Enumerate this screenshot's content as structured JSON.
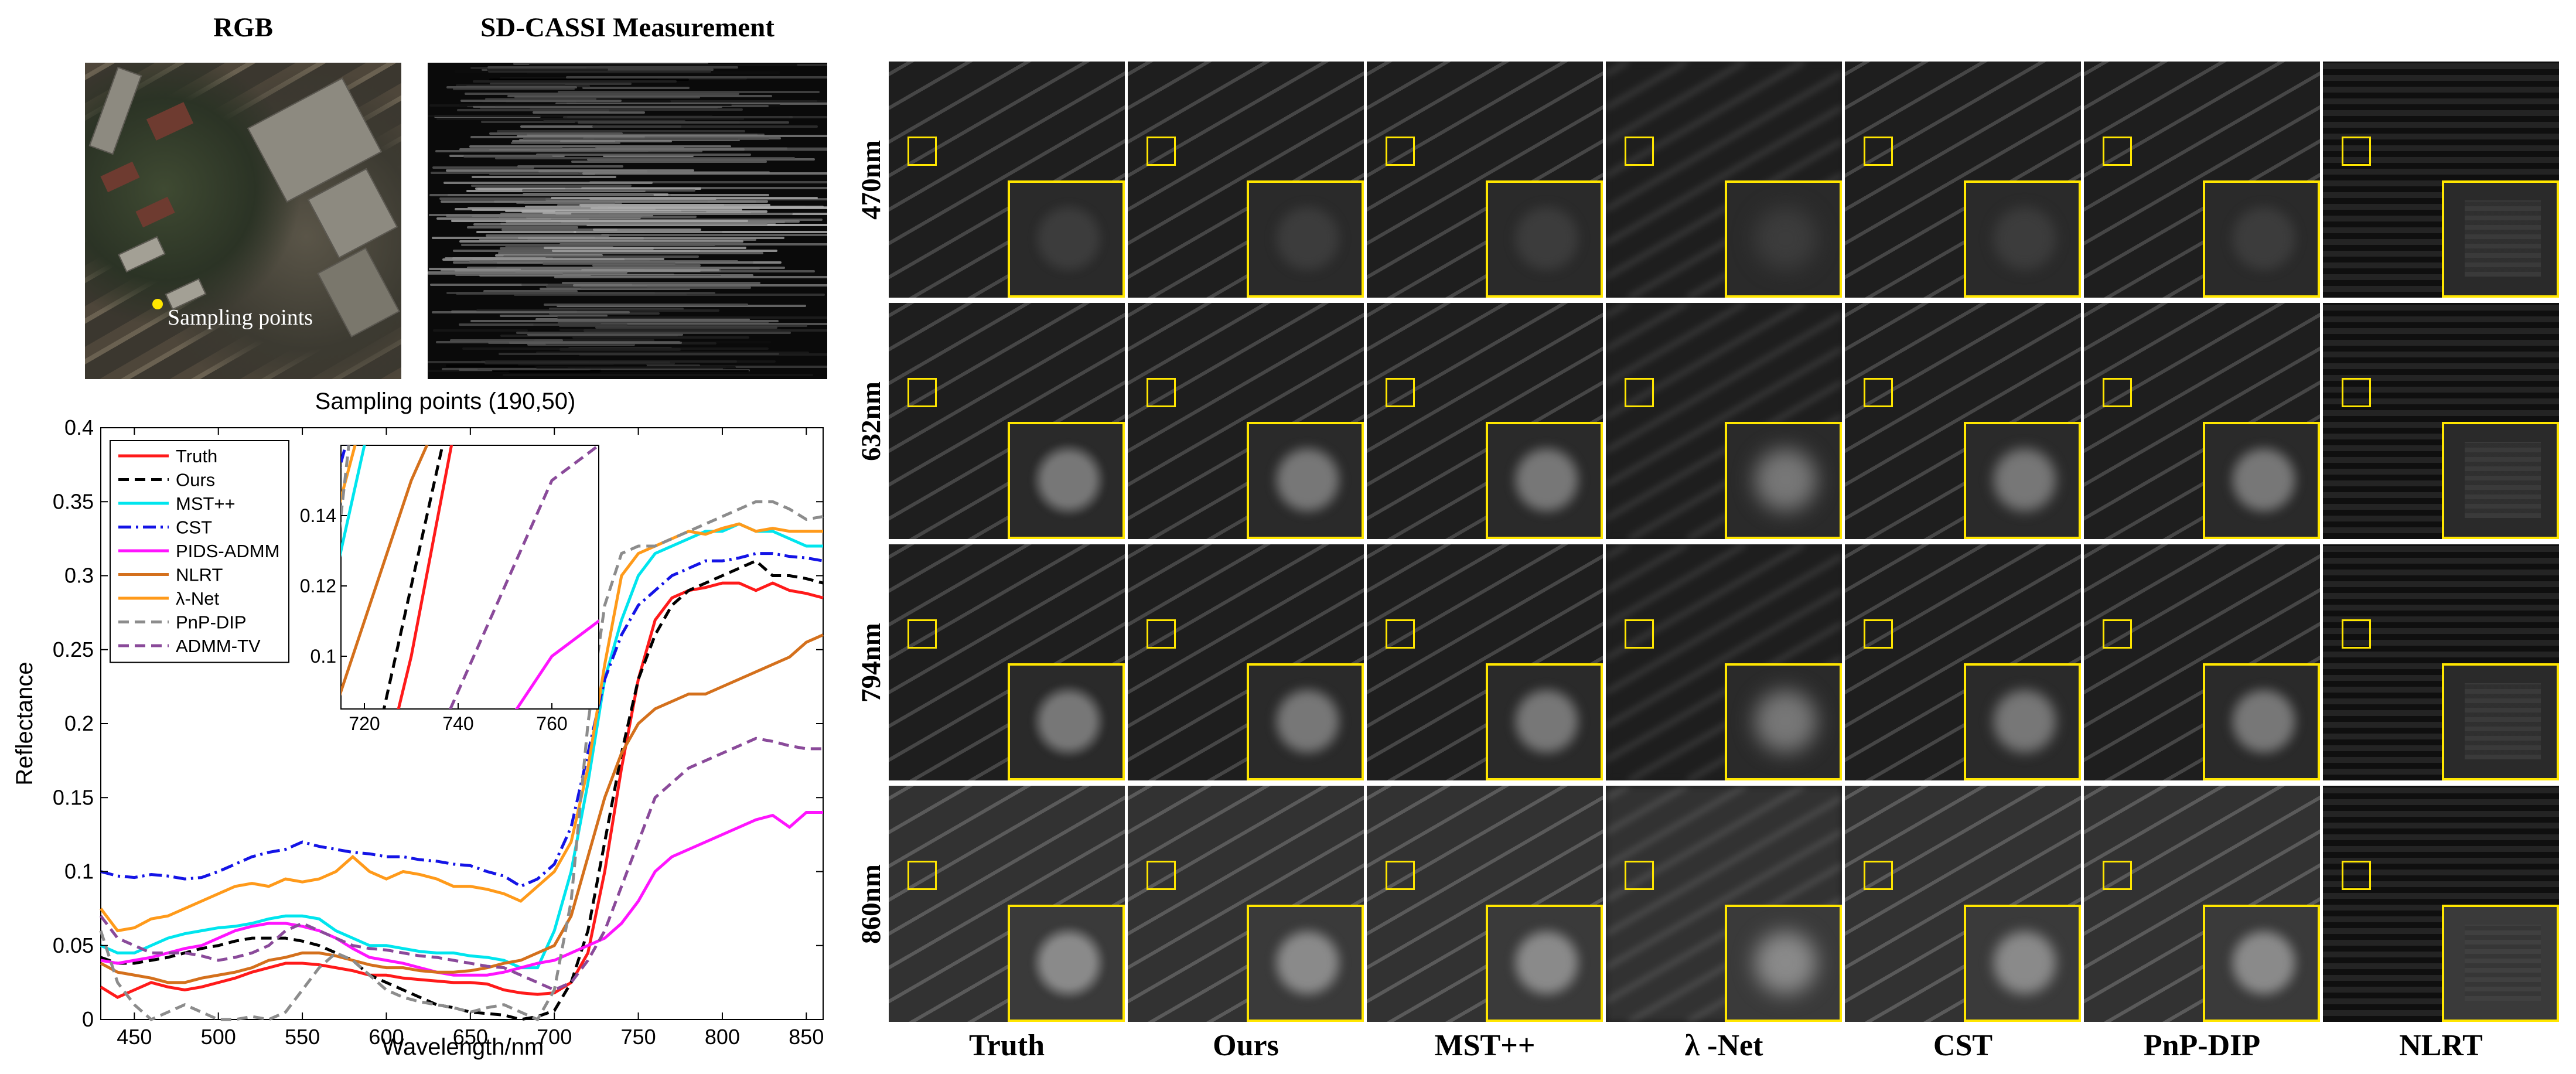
{
  "left": {
    "rgb_title": "RGB",
    "cassi_title": "SD-CASSI Measurement",
    "sample_label": "Sampling points"
  },
  "grid": {
    "row_labels": [
      "470nm",
      "632nm",
      "794nm",
      "860nm"
    ],
    "col_labels": [
      "Truth",
      "Ours",
      "MST++",
      "λ -Net",
      "CST",
      "PnP-DIP",
      "NLRT"
    ]
  },
  "colors": {
    "Truth": "#ff1a1a",
    "Ours": "#000000",
    "MST++": "#00e5ee",
    "CST": "#1414e6",
    "PIDS-ADMM": "#ff14ff",
    "NLRT": "#d4701c",
    "λ-Net": "#ff9a1a",
    "PnP-DIP": "#8c8c8c",
    "ADMM-TV": "#8a4a9a",
    "highlight": "#ffe600"
  },
  "chart_data": {
    "type": "line",
    "title": "Sampling points (190,50)",
    "xlabel": "Wavelength/nm",
    "ylabel": "Reflectance",
    "xlim": [
      430,
      860
    ],
    "ylim": [
      0,
      0.4
    ],
    "xticks": [
      450,
      500,
      550,
      600,
      650,
      700,
      750,
      800,
      850
    ],
    "yticks": [
      0,
      0.05,
      0.1,
      0.15,
      0.2,
      0.25,
      0.3,
      0.35,
      0.4
    ],
    "ytick_labels": [
      "0",
      "0.05",
      "0.1",
      "0.15",
      "0.2",
      "0.25",
      "0.3",
      "0.35",
      "0.4"
    ],
    "legend_position": "top-left",
    "x": [
      430,
      440,
      450,
      460,
      470,
      480,
      490,
      500,
      510,
      520,
      530,
      540,
      550,
      560,
      570,
      580,
      590,
      600,
      610,
      620,
      630,
      640,
      650,
      660,
      670,
      680,
      690,
      700,
      710,
      720,
      730,
      740,
      750,
      760,
      770,
      780,
      790,
      800,
      810,
      820,
      830,
      840,
      850,
      860
    ],
    "series": [
      {
        "name": "Truth",
        "style": "solid",
        "values": [
          0.022,
          0.015,
          0.02,
          0.025,
          0.022,
          0.02,
          0.022,
          0.025,
          0.028,
          0.032,
          0.035,
          0.038,
          0.038,
          0.037,
          0.035,
          0.033,
          0.03,
          0.03,
          0.028,
          0.027,
          0.026,
          0.025,
          0.025,
          0.024,
          0.02,
          0.018,
          0.017,
          0.018,
          0.025,
          0.045,
          0.1,
          0.17,
          0.23,
          0.27,
          0.285,
          0.29,
          0.292,
          0.295,
          0.295,
          0.29,
          0.295,
          0.29,
          0.288,
          0.285
        ]
      },
      {
        "name": "Ours",
        "style": "dashed",
        "values": [
          0.042,
          0.038,
          0.038,
          0.04,
          0.042,
          0.045,
          0.048,
          0.05,
          0.053,
          0.055,
          0.055,
          0.055,
          0.053,
          0.05,
          0.045,
          0.04,
          0.03,
          0.025,
          0.02,
          0.015,
          0.01,
          0.008,
          0.005,
          0.004,
          0.003,
          0.0,
          0.002,
          0.006,
          0.025,
          0.06,
          0.12,
          0.18,
          0.23,
          0.26,
          0.28,
          0.29,
          0.295,
          0.3,
          0.305,
          0.31,
          0.3,
          0.3,
          0.298,
          0.295
        ]
      },
      {
        "name": "MST++",
        "style": "solid",
        "values": [
          0.05,
          0.045,
          0.045,
          0.05,
          0.055,
          0.058,
          0.06,
          0.062,
          0.063,
          0.065,
          0.068,
          0.07,
          0.07,
          0.068,
          0.06,
          0.055,
          0.05,
          0.05,
          0.048,
          0.046,
          0.045,
          0.045,
          0.043,
          0.042,
          0.04,
          0.035,
          0.035,
          0.06,
          0.1,
          0.16,
          0.23,
          0.27,
          0.3,
          0.315,
          0.32,
          0.325,
          0.33,
          0.33,
          0.335,
          0.33,
          0.33,
          0.325,
          0.32,
          0.32
        ]
      },
      {
        "name": "CST",
        "style": "dashdot",
        "values": [
          0.1,
          0.097,
          0.096,
          0.098,
          0.097,
          0.095,
          0.096,
          0.1,
          0.105,
          0.11,
          0.113,
          0.115,
          0.12,
          0.117,
          0.115,
          0.113,
          0.112,
          0.11,
          0.11,
          0.108,
          0.107,
          0.105,
          0.104,
          0.1,
          0.097,
          0.09,
          0.095,
          0.105,
          0.13,
          0.18,
          0.23,
          0.26,
          0.28,
          0.29,
          0.3,
          0.305,
          0.31,
          0.31,
          0.312,
          0.315,
          0.315,
          0.313,
          0.312,
          0.31
        ]
      },
      {
        "name": "PIDS-ADMM",
        "style": "solid",
        "values": [
          0.04,
          0.038,
          0.04,
          0.042,
          0.045,
          0.048,
          0.05,
          0.055,
          0.06,
          0.063,
          0.065,
          0.065,
          0.063,
          0.06,
          0.055,
          0.048,
          0.042,
          0.04,
          0.038,
          0.035,
          0.032,
          0.03,
          0.03,
          0.03,
          0.032,
          0.035,
          0.038,
          0.04,
          0.045,
          0.05,
          0.055,
          0.065,
          0.08,
          0.1,
          0.11,
          0.115,
          0.12,
          0.125,
          0.13,
          0.135,
          0.138,
          0.13,
          0.14,
          0.14
        ]
      },
      {
        "name": "NLRT",
        "style": "solid",
        "values": [
          0.038,
          0.032,
          0.03,
          0.028,
          0.025,
          0.025,
          0.028,
          0.03,
          0.032,
          0.035,
          0.04,
          0.042,
          0.045,
          0.045,
          0.043,
          0.04,
          0.037,
          0.035,
          0.035,
          0.033,
          0.032,
          0.032,
          0.033,
          0.035,
          0.038,
          0.04,
          0.045,
          0.05,
          0.07,
          0.11,
          0.15,
          0.18,
          0.2,
          0.21,
          0.215,
          0.22,
          0.22,
          0.225,
          0.23,
          0.235,
          0.24,
          0.245,
          0.255,
          0.26
        ]
      },
      {
        "name": "λ-Net",
        "style": "solid",
        "values": [
          0.075,
          0.06,
          0.062,
          0.068,
          0.07,
          0.075,
          0.08,
          0.085,
          0.09,
          0.092,
          0.09,
          0.095,
          0.093,
          0.095,
          0.1,
          0.11,
          0.1,
          0.095,
          0.1,
          0.098,
          0.095,
          0.09,
          0.09,
          0.088,
          0.085,
          0.08,
          0.09,
          0.1,
          0.12,
          0.17,
          0.24,
          0.3,
          0.315,
          0.32,
          0.325,
          0.33,
          0.328,
          0.332,
          0.335,
          0.33,
          0.332,
          0.33,
          0.33,
          0.33
        ]
      },
      {
        "name": "PnP-DIP",
        "style": "dashed",
        "values": [
          0.06,
          0.025,
          0.01,
          0.0,
          0.005,
          0.01,
          0.005,
          0.0,
          0.0,
          0.002,
          0.0,
          0.005,
          0.02,
          0.035,
          0.045,
          0.04,
          0.03,
          0.02,
          0.015,
          0.012,
          0.01,
          0.008,
          0.005,
          0.008,
          0.01,
          0.005,
          0.0,
          0.02,
          0.08,
          0.2,
          0.28,
          0.315,
          0.32,
          0.32,
          0.325,
          0.33,
          0.335,
          0.34,
          0.345,
          0.35,
          0.35,
          0.345,
          0.338,
          0.34
        ]
      },
      {
        "name": "ADMM-TV",
        "style": "dashed",
        "values": [
          0.07,
          0.055,
          0.05,
          0.045,
          0.045,
          0.045,
          0.043,
          0.04,
          0.042,
          0.045,
          0.05,
          0.06,
          0.065,
          0.06,
          0.055,
          0.05,
          0.048,
          0.047,
          0.045,
          0.043,
          0.042,
          0.04,
          0.038,
          0.036,
          0.035,
          0.03,
          0.025,
          0.02,
          0.025,
          0.04,
          0.06,
          0.09,
          0.12,
          0.15,
          0.16,
          0.17,
          0.175,
          0.18,
          0.185,
          0.19,
          0.188,
          0.185,
          0.183,
          0.183
        ]
      }
    ],
    "inset": {
      "xlim": [
        715,
        770
      ],
      "ylim": [
        0.085,
        0.16
      ],
      "xticks": [
        720,
        740,
        760
      ],
      "yticks": [
        0.1,
        0.12,
        0.14
      ],
      "ytick_labels": [
        "0.1",
        "0.12",
        "0.14"
      ]
    }
  }
}
